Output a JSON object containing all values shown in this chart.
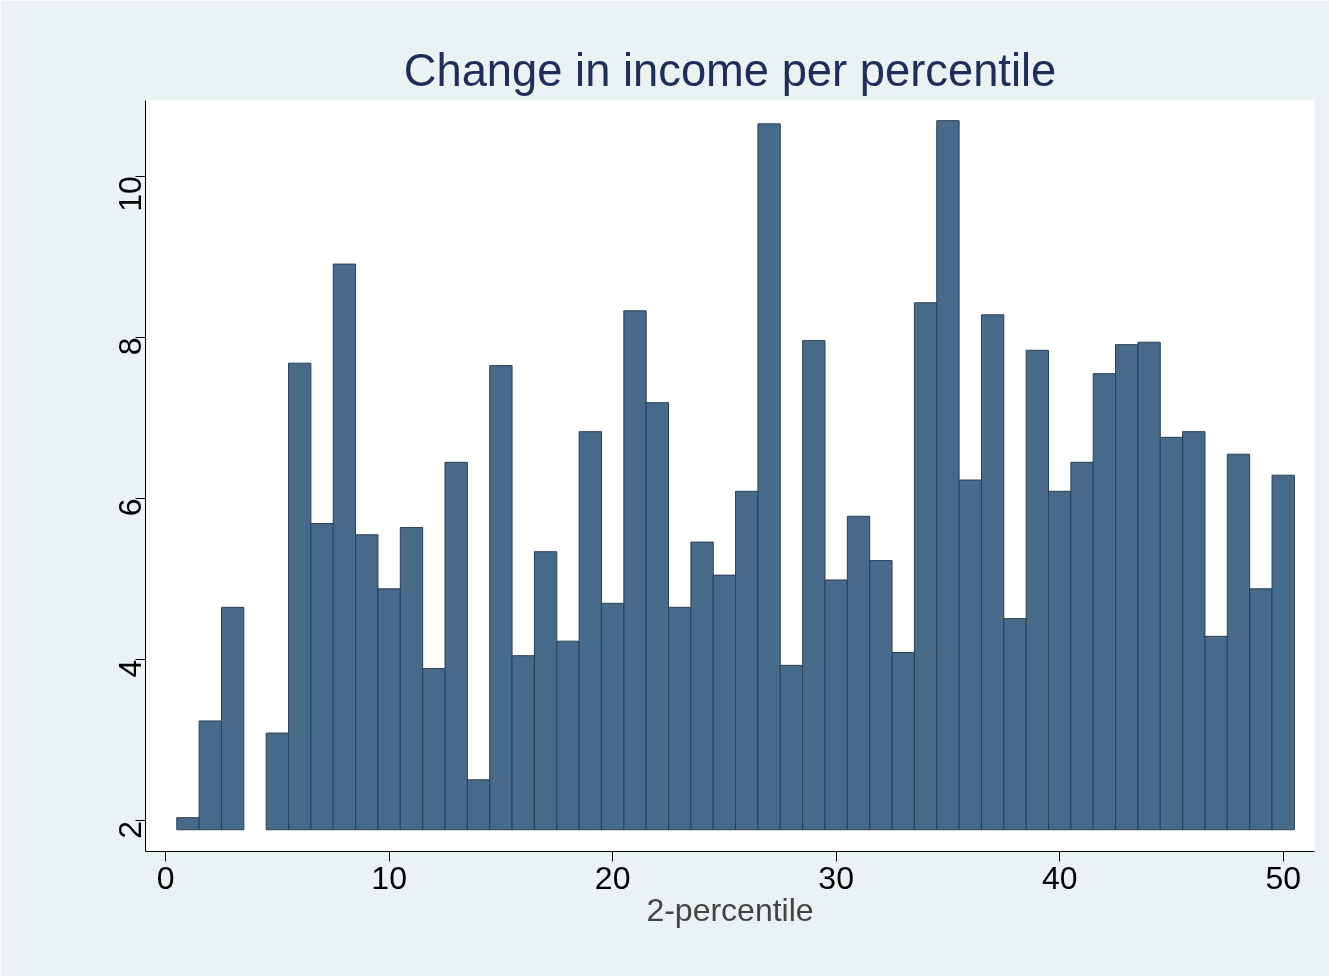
{
  "chart_data": {
    "type": "bar",
    "title": "Change in income per percentile",
    "xlabel": "2-percentile",
    "x": [
      1,
      2,
      3,
      4,
      5,
      6,
      7,
      8,
      9,
      10,
      11,
      12,
      13,
      14,
      15,
      16,
      17,
      18,
      19,
      20,
      21,
      22,
      23,
      24,
      25,
      26,
      27,
      28,
      29,
      30,
      31,
      32,
      33,
      34,
      35,
      36,
      37,
      38,
      39,
      40,
      41,
      42,
      43,
      44,
      45,
      46,
      47,
      48,
      49,
      50
    ],
    "base": [
      1.89,
      1.89,
      1.89,
      null,
      1.89,
      1.89,
      1.89,
      1.89,
      1.89,
      1.89,
      1.89,
      1.89,
      1.89,
      1.89,
      1.89,
      1.89,
      1.89,
      1.89,
      1.89,
      1.89,
      1.89,
      1.89,
      1.89,
      1.89,
      1.89,
      1.89,
      1.89,
      1.89,
      1.89,
      1.89,
      1.89,
      1.89,
      1.89,
      1.89,
      1.89,
      1.89,
      1.89,
      1.89,
      1.89,
      1.89,
      1.89,
      1.89,
      1.89,
      1.89,
      1.89,
      1.89,
      1.89,
      1.89,
      1.89,
      1.89
    ],
    "values": [
      0.15,
      1.35,
      2.76,
      null,
      1.2,
      5.79,
      3.8,
      7.02,
      3.66,
      2.99,
      3.75,
      2.0,
      4.56,
      0.62,
      5.76,
      2.16,
      3.45,
      2.34,
      4.94,
      2.81,
      6.44,
      5.3,
      2.76,
      3.57,
      3.16,
      4.2,
      8.76,
      2.04,
      6.07,
      3.1,
      3.89,
      3.34,
      2.2,
      6.54,
      8.8,
      4.34,
      6.39,
      2.62,
      5.95,
      4.2,
      4.56,
      5.66,
      6.02,
      6.05,
      4.87,
      4.94,
      2.4,
      4.66,
      2.99,
      4.4
    ],
    "color": "#476a8a",
    "xlim": [
      -0.9,
      51.4
    ],
    "ylim": [
      1.62,
      10.94
    ],
    "xticks": [
      0,
      10,
      20,
      30,
      40,
      50
    ],
    "yticks": [
      2,
      4,
      6,
      8,
      10
    ],
    "grid": false
  }
}
